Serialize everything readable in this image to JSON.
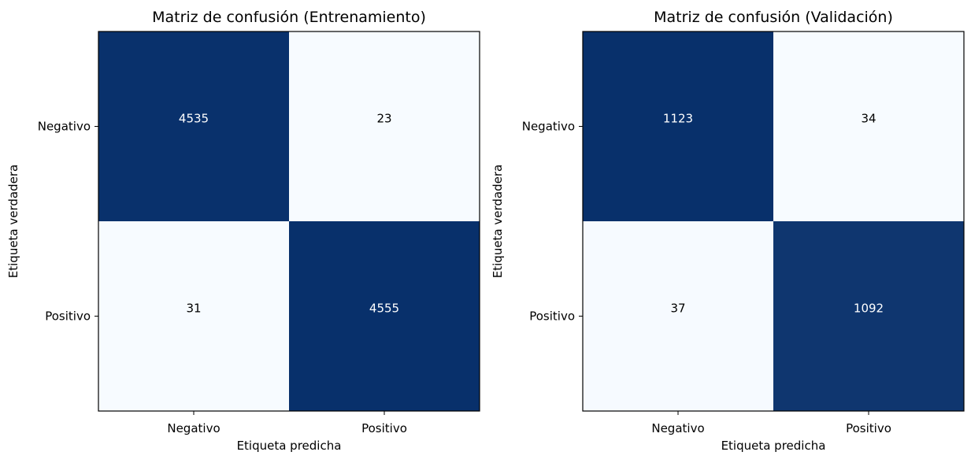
{
  "chart_data": [
    {
      "type": "heatmap",
      "title": "Matriz de confusión (Entrenamiento)",
      "xlabel": "Etiqueta predicha",
      "ylabel": "Etiqueta verdadera",
      "x_categories": [
        "Negativo",
        "Positivo"
      ],
      "y_categories": [
        "Negativo",
        "Positivo"
      ],
      "values": [
        [
          4535,
          23
        ],
        [
          31,
          4555
        ]
      ],
      "colormap": "Blues",
      "colors": {
        "low": "#f7fbff",
        "high": "#08306b",
        "text_light": "#ffffff",
        "text_dark": "#000000"
      }
    },
    {
      "type": "heatmap",
      "title": "Matriz de confusión (Validación)",
      "xlabel": "Etiqueta predicha",
      "ylabel": "Etiqueta verdadera",
      "x_categories": [
        "Negativo",
        "Positivo"
      ],
      "y_categories": [
        "Negativo",
        "Positivo"
      ],
      "values": [
        [
          1123,
          34
        ],
        [
          37,
          1092
        ]
      ],
      "colormap": "Blues",
      "colors": {
        "low": "#f7fbff",
        "high": "#08306b",
        "text_light": "#ffffff",
        "text_dark": "#000000"
      }
    }
  ]
}
